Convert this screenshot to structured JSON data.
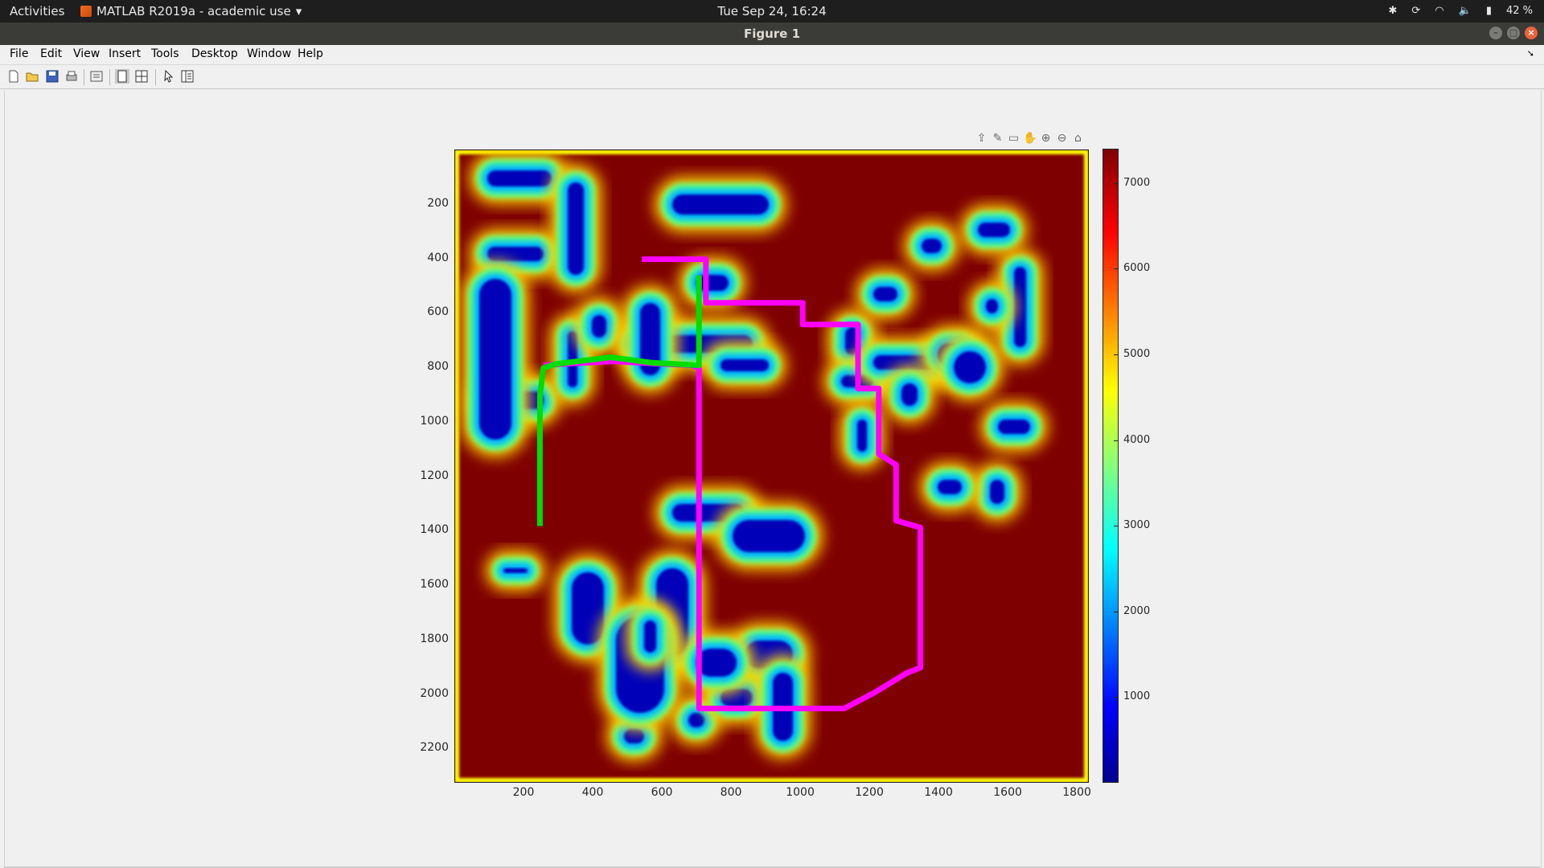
{
  "topbar": {
    "activities": "Activities",
    "app_menu": "MATLAB R2019a - academic use",
    "clock": "Tue Sep 24, 16:24",
    "battery": "42 %"
  },
  "window": {
    "title": "Figure 1"
  },
  "menu": {
    "file": "File",
    "edit": "Edit",
    "view": "View",
    "insert": "Insert",
    "tools": "Tools",
    "desktop": "Desktop",
    "window": "Window",
    "help": "Help"
  },
  "toolbar_icons": [
    "new-figure-icon",
    "open-file-icon",
    "save-icon",
    "print-icon",
    "link-plot-icon",
    "hide-plot-tools-icon",
    "show-plot-tools-icon",
    "edit-plot-arrow-icon",
    "property-inspector-icon"
  ],
  "axes_toolbar_icons": [
    "export-icon",
    "brush-icon",
    "datatip-icon",
    "pan-icon",
    "zoom-in-icon",
    "zoom-out-icon",
    "restore-view-icon"
  ],
  "colors": {
    "heatmap_max": "#7f0000",
    "path_magenta": "#ff00ff",
    "path_green": "#00dd00"
  },
  "chart_data": {
    "type": "heatmap",
    "colormap": "jet",
    "xlim": [
      0,
      1830
    ],
    "ylim": [
      2320,
      0
    ],
    "xticks": [
      "200",
      "400",
      "600",
      "800",
      "1000",
      "1200",
      "1400",
      "1600",
      "1800"
    ],
    "yticks": [
      "200",
      "400",
      "600",
      "800",
      "1000",
      "1200",
      "1400",
      "1600",
      "1800",
      "2000",
      "2200"
    ],
    "colorbar": {
      "range": [
        0,
        7400
      ],
      "ticks": [
        "1000",
        "2000",
        "3000",
        "4000",
        "5000",
        "6000",
        "7000"
      ]
    },
    "paths": [
      {
        "color": "magenta",
        "points": [
          [
            540,
            400
          ],
          [
            725,
            400
          ],
          [
            725,
            560
          ],
          [
            1005,
            560
          ],
          [
            1005,
            640
          ],
          [
            1165,
            640
          ],
          [
            1165,
            875
          ],
          [
            1225,
            875
          ],
          [
            1225,
            1115
          ],
          [
            1275,
            1155
          ],
          [
            1275,
            1360
          ],
          [
            1345,
            1385
          ],
          [
            1345,
            1900
          ],
          [
            1305,
            1920
          ],
          [
            1215,
            1990
          ],
          [
            1125,
            2050
          ],
          [
            705,
            2050
          ],
          [
            705,
            800
          ],
          [
            685,
            790
          ],
          [
            455,
            775
          ],
          [
            305,
            785
          ],
          [
            255,
            790
          ]
        ]
      },
      {
        "color": "green",
        "points": [
          [
            705,
            460
          ],
          [
            705,
            790
          ],
          [
            570,
            780
          ],
          [
            450,
            760
          ],
          [
            290,
            785
          ],
          [
            255,
            800
          ],
          [
            245,
            900
          ],
          [
            245,
            1380
          ]
        ]
      }
    ]
  }
}
